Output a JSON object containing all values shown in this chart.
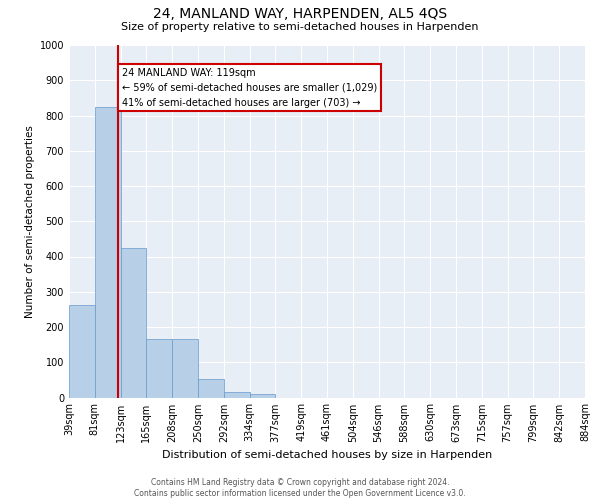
{
  "title": "24, MANLAND WAY, HARPENDEN, AL5 4QS",
  "subtitle": "Size of property relative to semi-detached houses in Harpenden",
  "xlabel": "Distribution of semi-detached houses by size in Harpenden",
  "ylabel": "Number of semi-detached properties",
  "footnote": "Contains HM Land Registry data © Crown copyright and database right 2024.\nContains public sector information licensed under the Open Government Licence v3.0.",
  "annotation_text": "24 MANLAND WAY: 119sqm\n← 59% of semi-detached houses are smaller (1,029)\n41% of semi-detached houses are larger (703) →",
  "property_size": 119,
  "bins": [
    39,
    81,
    123,
    165,
    208,
    250,
    292,
    334,
    377,
    419,
    461,
    504,
    546,
    588,
    630,
    673,
    715,
    757,
    799,
    842,
    884
  ],
  "counts": [
    262,
    825,
    425,
    165,
    165,
    52,
    15,
    10,
    0,
    0,
    0,
    0,
    0,
    0,
    0,
    0,
    0,
    0,
    0,
    0
  ],
  "bar_color": "#b8cfe8",
  "bar_edge_color": "#6699cc",
  "vline_color": "#cc0000",
  "annotation_box_edge": "#cc0000",
  "background_color": "#e8eef6",
  "grid_color": "#ffffff",
  "ylim": [
    0,
    1000
  ],
  "yticks": [
    0,
    100,
    200,
    300,
    400,
    500,
    600,
    700,
    800,
    900,
    1000
  ],
  "title_fontsize": 10,
  "subtitle_fontsize": 8,
  "ylabel_fontsize": 7.5,
  "xlabel_fontsize": 8,
  "tick_fontsize": 7,
  "annotation_fontsize": 7,
  "footnote_fontsize": 5.5
}
